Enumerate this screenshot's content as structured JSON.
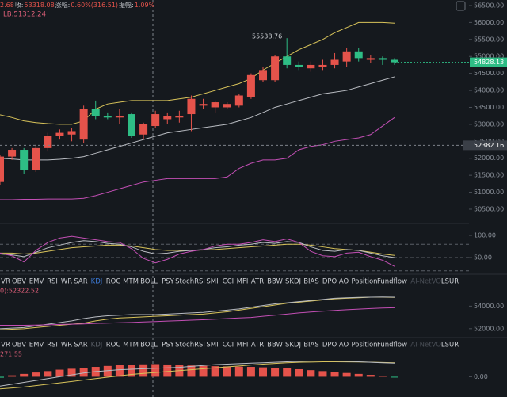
{
  "header": {
    "info": [
      "2.68",
      "收:",
      "53318.08",
      "涨幅:",
      "0.60%(316.51)",
      "振幅:",
      "1.09%"
    ],
    "lb": "LB:51312.24"
  },
  "price_panel": {
    "ylim": [
      50079,
      56663
    ],
    "yticks": [
      {
        "value": 56500,
        "label": "56500.00"
      },
      {
        "value": 56000,
        "label": "56000.00"
      },
      {
        "value": 55500,
        "label": "55500.00"
      },
      {
        "value": 55000,
        "label": "55000.00"
      },
      {
        "value": 54500,
        "label": "54500.00"
      },
      {
        "value": 54000,
        "label": "54000.00"
      },
      {
        "value": 53500,
        "label": "53500.00"
      },
      {
        "value": 53000,
        "label": "53000.00"
      },
      {
        "value": 52500,
        "label": "52500.00"
      },
      {
        "value": 52000,
        "label": "52000.00"
      },
      {
        "value": 51500,
        "label": "51500.00"
      },
      {
        "value": 51000,
        "label": "51000.00"
      },
      {
        "value": 50500,
        "label": "50500.00"
      }
    ],
    "up_color": "#e5534b",
    "down_color": "#2ebd85",
    "candles": [
      {
        "open": 51300,
        "close": 52050,
        "high": 52100,
        "low": 51200
      },
      {
        "open": 52050,
        "close": 52250,
        "high": 52300,
        "low": 51950
      },
      {
        "open": 52250,
        "close": 51650,
        "high": 52300,
        "low": 51550
      },
      {
        "open": 51650,
        "close": 52300,
        "high": 52400,
        "low": 51600
      },
      {
        "open": 52300,
        "close": 52650,
        "high": 52750,
        "low": 52200
      },
      {
        "open": 52650,
        "close": 52750,
        "high": 52850,
        "low": 52550
      },
      {
        "open": 52700,
        "close": 52800,
        "high": 52900,
        "low": 52500
      },
      {
        "open": 52550,
        "close": 53450,
        "high": 53550,
        "low": 52450
      },
      {
        "open": 53450,
        "close": 53250,
        "high": 53700,
        "low": 53150
      },
      {
        "open": 53250,
        "close": 53200,
        "high": 53350,
        "low": 53150
      },
      {
        "open": 53200,
        "close": 53250,
        "high": 53450,
        "low": 53000
      },
      {
        "open": 53300,
        "close": 52650,
        "high": 53350,
        "low": 52600
      },
      {
        "open": 52700,
        "close": 53000,
        "high": 53050,
        "low": 52550
      },
      {
        "open": 52950,
        "close": 53300,
        "high": 53400,
        "low": 52900
      },
      {
        "open": 53150,
        "close": 53250,
        "high": 53350,
        "low": 53000
      },
      {
        "open": 53200,
        "close": 53250,
        "high": 53400,
        "low": 53050
      },
      {
        "open": 53300,
        "close": 53750,
        "high": 53850,
        "low": 52800
      },
      {
        "open": 53550,
        "close": 53600,
        "high": 53750,
        "low": 53450
      },
      {
        "open": 53500,
        "close": 53650,
        "high": 53700,
        "low": 53350
      },
      {
        "open": 53500,
        "close": 53600,
        "high": 53650,
        "low": 53450
      },
      {
        "open": 53550,
        "close": 53850,
        "high": 53900,
        "low": 53500
      },
      {
        "open": 53800,
        "close": 54450,
        "high": 54500,
        "low": 53750
      },
      {
        "open": 54300,
        "close": 54600,
        "high": 54700,
        "low": 54250
      },
      {
        "open": 54300,
        "close": 55000,
        "high": 55050,
        "low": 54250
      },
      {
        "open": 55000,
        "close": 54750,
        "high": 55538.76,
        "low": 54650
      },
      {
        "open": 54750,
        "close": 54700,
        "high": 54850,
        "low": 54600
      },
      {
        "open": 54650,
        "close": 54750,
        "high": 54850,
        "low": 54550
      },
      {
        "open": 54700,
        "close": 54750,
        "high": 54900,
        "low": 54600
      },
      {
        "open": 54750,
        "close": 54900,
        "high": 55100,
        "low": 54650
      },
      {
        "open": 54850,
        "close": 55150,
        "high": 55250,
        "low": 54700
      },
      {
        "open": 55150,
        "close": 54950,
        "high": 55250,
        "low": 54850
      },
      {
        "open": 54900,
        "close": 54950,
        "high": 55050,
        "low": 54800
      },
      {
        "open": 54950,
        "close": 54900,
        "high": 55000,
        "low": 54750
      },
      {
        "open": 54900,
        "close": 54828.13,
        "high": 54950,
        "low": 54750
      }
    ],
    "lines": [
      {
        "color": "#d8c35a",
        "values": [
          53280,
          53200,
          53100,
          53050,
          53020,
          53000,
          53000,
          53100,
          53450,
          53600,
          53650,
          53700,
          53700,
          53700,
          53700,
          53750,
          53800,
          53900,
          54000,
          54100,
          54200,
          54350,
          54600,
          54800,
          55000,
          55200,
          55350,
          55500,
          55700,
          55850,
          56000,
          56000,
          56000,
          55980
        ]
      },
      {
        "color": "#b9bcc2",
        "values": [
          52000,
          51980,
          51950,
          51950,
          51950,
          51970,
          52000,
          52050,
          52150,
          52250,
          52350,
          52450,
          52550,
          52650,
          52750,
          52800,
          52850,
          52900,
          52950,
          53000,
          53100,
          53200,
          53350,
          53500,
          53600,
          53700,
          53800,
          53900,
          53950,
          54000,
          54100,
          54200,
          54300,
          54400
        ]
      },
      {
        "color": "#c34fb5",
        "values": [
          50780,
          50780,
          50790,
          50790,
          50800,
          50800,
          50800,
          50820,
          50900,
          51000,
          51100,
          51200,
          51300,
          51350,
          51400,
          51400,
          51400,
          51400,
          51400,
          51450,
          51700,
          51850,
          51950,
          51950,
          52000,
          52250,
          52350,
          52400,
          52500,
          52550,
          52600,
          52700,
          52950,
          53200
        ]
      }
    ],
    "crosshair": 52382.16
  },
  "kdj_panel": {
    "ylim": [
      12.5,
      125
    ],
    "yticks": [
      {
        "value": 100,
        "label": "100.00"
      },
      {
        "value": 50,
        "label": "50.00"
      }
    ],
    "levels": [
      80,
      50,
      20
    ],
    "lines": [
      {
        "color": "#d8c35a",
        "values": [
          60,
          60,
          58,
          60,
          64,
          68,
          72,
          74,
          76,
          78,
          78,
          76,
          72,
          68,
          66,
          66,
          66,
          67,
          68,
          70,
          72,
          74,
          76,
          78,
          80,
          80,
          78,
          74,
          70,
          68,
          66,
          62,
          58,
          55
        ]
      },
      {
        "color": "#b9bcc2",
        "values": [
          58,
          56,
          52,
          62,
          72,
          78,
          84,
          88,
          86,
          82,
          80,
          74,
          64,
          58,
          60,
          64,
          66,
          68,
          72,
          74,
          78,
          80,
          84,
          82,
          86,
          84,
          74,
          66,
          64,
          68,
          66,
          60,
          54,
          50
        ]
      },
      {
        "color": "#c34fb5",
        "values": [
          60,
          54,
          40,
          66,
          84,
          94,
          98,
          94,
          90,
          86,
          84,
          70,
          48,
          38,
          46,
          58,
          64,
          68,
          76,
          80,
          80,
          84,
          90,
          86,
          92,
          84,
          64,
          54,
          52,
          60,
          62,
          52,
          44,
          30
        ]
      }
    ]
  },
  "tabs": [
    "VR",
    "OBV",
    "EMV",
    "RSI",
    "WR",
    "SAR",
    "KDJ",
    "ROC",
    "MTM",
    "BOLL",
    "PSY",
    "StochRSI",
    "SMI",
    "CCI",
    "MFI",
    "ATR",
    "BBW",
    "SKDJ",
    "BIAS",
    "DPO",
    "AO",
    "Position",
    "Fundflow",
    "AI-NetVOL",
    "LSUR"
  ],
  "panel3": {
    "label": "0):52322.52",
    "ylim": [
      51214,
      55643
    ],
    "yticks": [
      {
        "value": 54000,
        "label": "54000.00"
      },
      {
        "value": 52000,
        "label": "52000.00"
      }
    ],
    "lines": [
      {
        "color": "#d8c35a",
        "values": [
          51900,
          51950,
          52000,
          52100,
          52200,
          52300,
          52400,
          52500,
          52700,
          52850,
          52950,
          53000,
          53050,
          53100,
          53150,
          53200,
          53250,
          53300,
          53400,
          53500,
          53650,
          53800,
          53950,
          54100,
          54250,
          54350,
          54450,
          54550,
          54650,
          54700,
          54750,
          54800,
          54800,
          54780
        ]
      },
      {
        "color": "#b9bcc2",
        "values": [
          52000,
          52050,
          52100,
          52250,
          52400,
          52550,
          52700,
          52900,
          53050,
          53150,
          53200,
          53250,
          53250,
          53250,
          53300,
          53350,
          53400,
          53450,
          53550,
          53650,
          53750,
          53900,
          54050,
          54200,
          54300,
          54400,
          54500,
          54600,
          54700,
          54750,
          54780,
          54800,
          54820,
          54800
        ]
      },
      {
        "color": "#c34fb5",
        "values": [
          52300,
          52300,
          52300,
          52320,
          52350,
          52380,
          52400,
          52430,
          52470,
          52500,
          52530,
          52560,
          52600,
          52640,
          52680,
          52720,
          52760,
          52800,
          52850,
          52900,
          52950,
          53000,
          53100,
          53200,
          53300,
          53400,
          53480,
          53550,
          53620,
          53680,
          53740,
          53790,
          53830,
          53860
        ]
      }
    ]
  },
  "panel4": {
    "label": "271.55",
    "ylim": [
      -433,
      566
    ],
    "yticks": [
      {
        "value": 0,
        "label": "0.00"
      }
    ],
    "bars": [
      -20,
      30,
      60,
      90,
      120,
      150,
      170,
      190,
      210,
      230,
      250,
      260,
      265,
      270,
      262,
      250,
      240,
      230,
      225,
      220,
      215,
      210,
      200,
      190,
      180,
      160,
      140,
      120,
      100,
      80,
      60,
      40,
      20,
      -15
    ],
    "lines": [
      {
        "color": "#d8c35a",
        "values": [
          -260,
          -240,
          -220,
          -190,
          -160,
          -130,
          -100,
          -70,
          -40,
          -10,
          20,
          50,
          70,
          90,
          110,
          130,
          150,
          170,
          190,
          210,
          230,
          250,
          270,
          285,
          300,
          310,
          315,
          320,
          320,
          318,
          316,
          312,
          306,
          300
        ]
      },
      {
        "color": "#b9bcc2",
        "values": [
          -200,
          -160,
          -120,
          -80,
          -40,
          0,
          40,
          80,
          110,
          130,
          150,
          160,
          170,
          180,
          190,
          200,
          220,
          240,
          260,
          270,
          280,
          290,
          300,
          310,
          320,
          330,
          335,
          338,
          336,
          330,
          320,
          310,
          300,
          290
        ]
      }
    ]
  }
}
